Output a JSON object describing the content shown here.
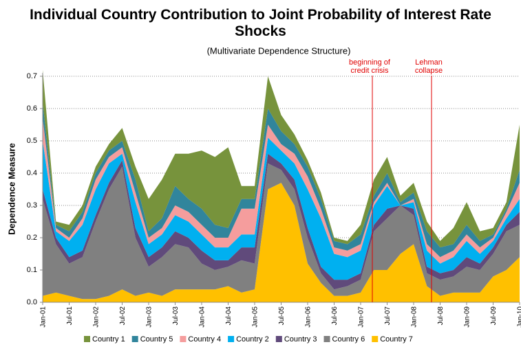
{
  "chart_data": {
    "type": "stacked_area",
    "title": "Individual Country Contribution to Joint Probability of Interest Rate Shocks",
    "subtitle": "(Multivariate Dependence Structure)",
    "y_label": "Dependence Measure",
    "categories": [
      "Jan-01",
      null,
      "Jul-01",
      null,
      "Jan-02",
      null,
      "Jul-02",
      null,
      "Jan-03",
      null,
      "Jul-03",
      null,
      "Jan-04",
      null,
      "Jul-04",
      null,
      "Jan-05",
      null,
      "Jul-05",
      null,
      "Jan-06",
      null,
      "Jul-06",
      null,
      "Jan-07",
      null,
      "Jul-07",
      null,
      "Jan-08",
      null,
      "Jul-08",
      null,
      "Jan-09",
      null,
      "Jul-09",
      null,
      "Jan-10"
    ],
    "series": [
      {
        "name": "Country 1",
        "color": "#77933c",
        "values": [
          0.1,
          0.01,
          0.02,
          0.02,
          0.02,
          0.02,
          0.04,
          0.04,
          0.1,
          0.12,
          0.1,
          0.14,
          0.18,
          0.21,
          0.25,
          0.04,
          0.04,
          0.1,
          0.05,
          0.03,
          0.02,
          0.02,
          0.01,
          0.01,
          0.03,
          0.05,
          0.05,
          0.02,
          0.03,
          0.03,
          0.02,
          0.05,
          0.07,
          0.03,
          0.02,
          0.02,
          0.14
        ]
      },
      {
        "name": "Country 5",
        "color": "#31859c",
        "values": [
          0.05,
          0.01,
          0.02,
          0.02,
          0.02,
          0.02,
          0.02,
          0.04,
          0.02,
          0.03,
          0.06,
          0.04,
          0.05,
          0.04,
          0.03,
          0.03,
          0.03,
          0.05,
          0.04,
          0.03,
          0.03,
          0.03,
          0.02,
          0.02,
          0.03,
          0.02,
          0.03,
          0.01,
          0.02,
          0.04,
          0.03,
          0.02,
          0.03,
          0.02,
          0.01,
          0.01,
          0.04
        ]
      },
      {
        "name": "Country 4",
        "color": "#f59d9d",
        "values": [
          0.07,
          0.01,
          0.01,
          0.02,
          0.03,
          0.02,
          0.02,
          0.03,
          0.02,
          0.02,
          0.03,
          0.03,
          0.03,
          0.03,
          0.03,
          0.08,
          0.08,
          0.04,
          0.02,
          0.03,
          0.04,
          0.03,
          0.02,
          0.02,
          0.02,
          0.01,
          0.01,
          0.0,
          0.01,
          0.02,
          0.02,
          0.02,
          0.02,
          0.02,
          0.01,
          0.02,
          0.05
        ]
      },
      {
        "name": "Country 2",
        "color": "#00b0f0",
        "values": [
          0.15,
          0.02,
          0.05,
          0.08,
          0.08,
          0.06,
          0.02,
          0.08,
          0.04,
          0.04,
          0.05,
          0.05,
          0.05,
          0.04,
          0.04,
          0.04,
          0.04,
          0.05,
          0.04,
          0.05,
          0.12,
          0.15,
          0.08,
          0.07,
          0.07,
          0.06,
          0.07,
          0.0,
          0.02,
          0.05,
          0.03,
          0.04,
          0.05,
          0.03,
          0.02,
          0.02,
          0.04
        ]
      },
      {
        "name": "Country 3",
        "color": "#604a7b",
        "values": [
          0.03,
          0.02,
          0.02,
          0.02,
          0.02,
          0.02,
          0.02,
          0.03,
          0.03,
          0.03,
          0.04,
          0.03,
          0.04,
          0.03,
          0.02,
          0.04,
          0.05,
          0.03,
          0.02,
          0.03,
          0.03,
          0.02,
          0.03,
          0.02,
          0.02,
          0.02,
          0.03,
          0.0,
          0.02,
          0.02,
          0.02,
          0.02,
          0.03,
          0.02,
          0.02,
          0.02,
          0.04
        ]
      },
      {
        "name": "Country 6",
        "color": "#808080",
        "values": [
          0.3,
          0.15,
          0.1,
          0.13,
          0.24,
          0.33,
          0.38,
          0.18,
          0.08,
          0.12,
          0.14,
          0.13,
          0.08,
          0.06,
          0.06,
          0.1,
          0.08,
          0.08,
          0.04,
          0.05,
          0.08,
          0.03,
          0.02,
          0.03,
          0.04,
          0.12,
          0.16,
          0.15,
          0.09,
          0.04,
          0.05,
          0.05,
          0.08,
          0.07,
          0.07,
          0.12,
          0.1
        ]
      },
      {
        "name": "Country 7",
        "color": "#ffc000",
        "values": [
          0.02,
          0.03,
          0.02,
          0.01,
          0.01,
          0.02,
          0.04,
          0.02,
          0.03,
          0.02,
          0.04,
          0.04,
          0.04,
          0.04,
          0.05,
          0.03,
          0.04,
          0.35,
          0.37,
          0.3,
          0.12,
          0.06,
          0.02,
          0.02,
          0.03,
          0.1,
          0.1,
          0.15,
          0.18,
          0.05,
          0.02,
          0.03,
          0.03,
          0.03,
          0.08,
          0.1,
          0.14
        ]
      }
    ],
    "ylim": [
      0,
      0.7
    ],
    "yticks": [
      {
        "value": 0,
        "label": "0.0"
      },
      0.1,
      0.2,
      0.3,
      0.4,
      0.5,
      0.6,
      0.7
    ],
    "grid": true,
    "legend": "bottom",
    "annotations": [
      {
        "lines": [
          "beginning of",
          "credit crisis"
        ],
        "color": "#e00000"
      },
      {
        "lines": [
          "Lehman",
          "collapse"
        ],
        "color": "#e00000"
      }
    ]
  }
}
